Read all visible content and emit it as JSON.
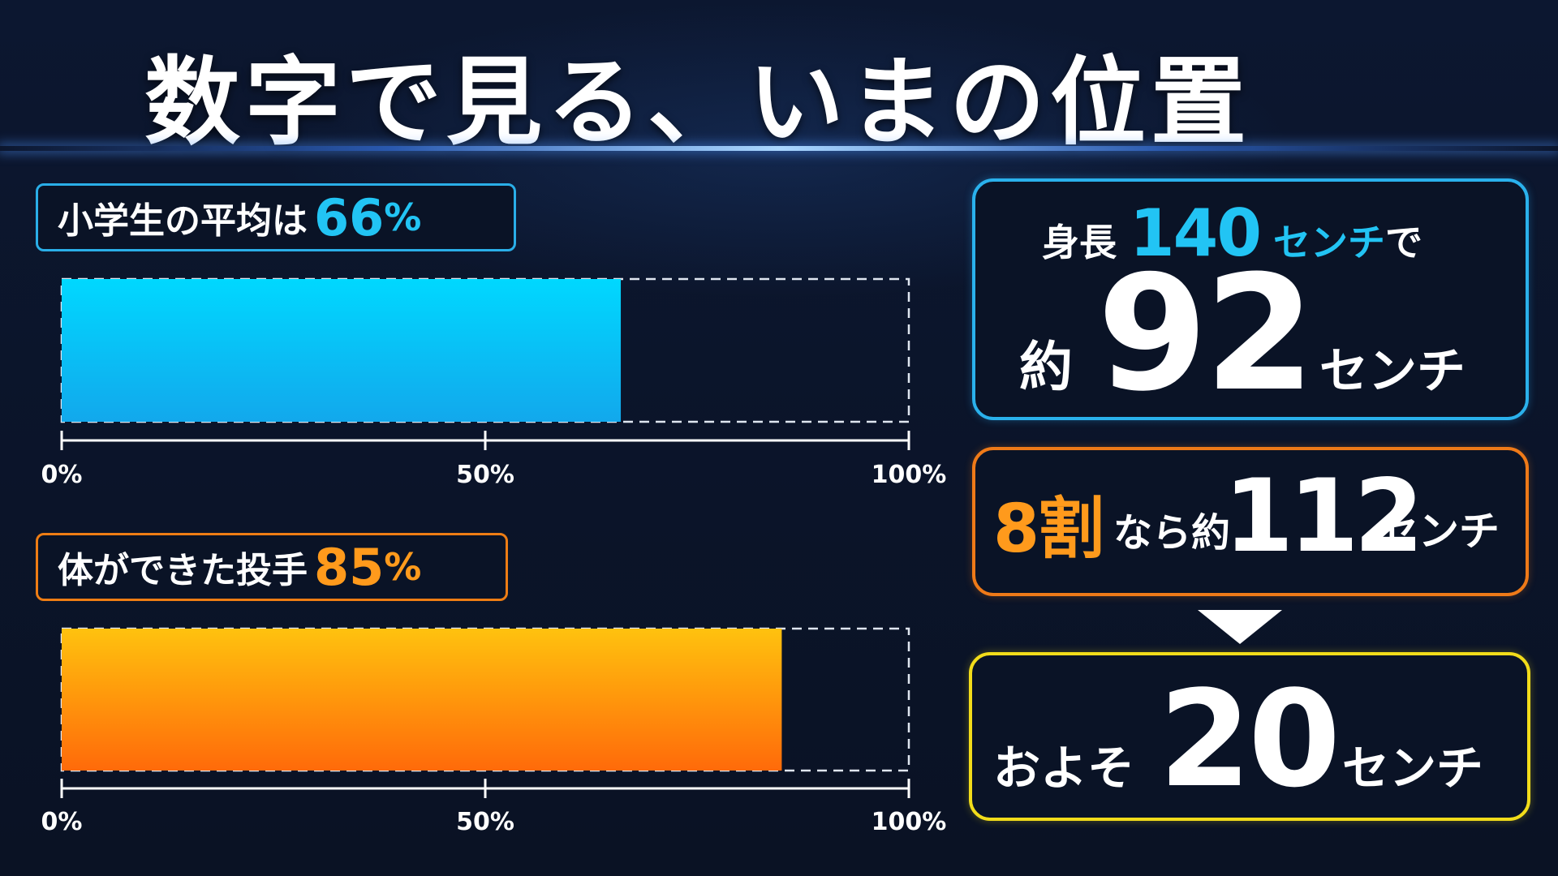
{
  "title": "数字で見る、いまの位置",
  "bars": [
    {
      "label": "小学生の平均は",
      "value_text": "66",
      "unit": "%",
      "color": "#22c4f4"
    },
    {
      "label": "体ができた投手",
      "value_text": "85",
      "unit": "%",
      "color": "#ff9a1c"
    }
  ],
  "chart_data": [
    {
      "type": "bar",
      "orientation": "horizontal",
      "title": "小学生の平均は 66%",
      "values": [
        66
      ],
      "xlim": [
        0,
        100
      ],
      "ticks": [
        "0%",
        "50%",
        "100%"
      ],
      "tick_values": [
        0,
        50,
        100
      ],
      "colors": [
        "#00d8ff",
        "#12a8ec"
      ]
    },
    {
      "type": "bar",
      "orientation": "horizontal",
      "title": "体ができた投手 85%",
      "values": [
        85
      ],
      "xlim": [
        0,
        100
      ],
      "ticks": [
        "0%",
        "50%",
        "100%"
      ],
      "tick_values": [
        0,
        50,
        100
      ],
      "colors": [
        "#ffc20e",
        "#ff6a0a"
      ]
    }
  ],
  "panels": {
    "height": {
      "prefix": "身長",
      "value": "140",
      "unit": "センチ",
      "suffix": "で",
      "result_prefix": "約",
      "result_value": "92",
      "result_unit": "センチ",
      "color": "#22c4f4"
    },
    "eighty": {
      "ratio": "8割",
      "middle": "なら約",
      "value": "112",
      "unit": "センチ",
      "color": "#ff9a1c"
    },
    "difference": {
      "prefix": "およそ",
      "value": "20",
      "unit": "センチ",
      "color": "#f2dc1a"
    }
  }
}
